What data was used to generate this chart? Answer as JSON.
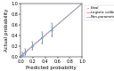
{
  "title": "",
  "xlabel": "Predicted probability",
  "ylabel": "Actual probability",
  "xlim": [
    0.0,
    1.0
  ],
  "ylim": [
    0.0,
    1.0
  ],
  "xticks": [
    0.0,
    0.2,
    0.4,
    0.6,
    0.8,
    1.0
  ],
  "yticks": [
    0.0,
    0.2,
    0.4,
    0.6,
    0.8,
    1.0
  ],
  "ideal_line_color": "#b0b0b0",
  "logistic_line_color": "#e87070",
  "nonparametric_line_color": "#7aaccc",
  "data_points_x": [
    0.03,
    0.07,
    0.19,
    0.35,
    0.5
  ],
  "data_points_y": [
    0.04,
    0.08,
    0.2,
    0.36,
    0.5
  ],
  "error_low": [
    0.005,
    0.03,
    0.13,
    0.25,
    0.38
  ],
  "error_high": [
    0.09,
    0.15,
    0.28,
    0.47,
    0.63
  ],
  "legend_labels": [
    "Ideal",
    "Logistic calibration",
    "Non-parametric"
  ],
  "tick_fontsize": 3.5,
  "label_fontsize": 4.0,
  "legend_fontsize": 2.8
}
